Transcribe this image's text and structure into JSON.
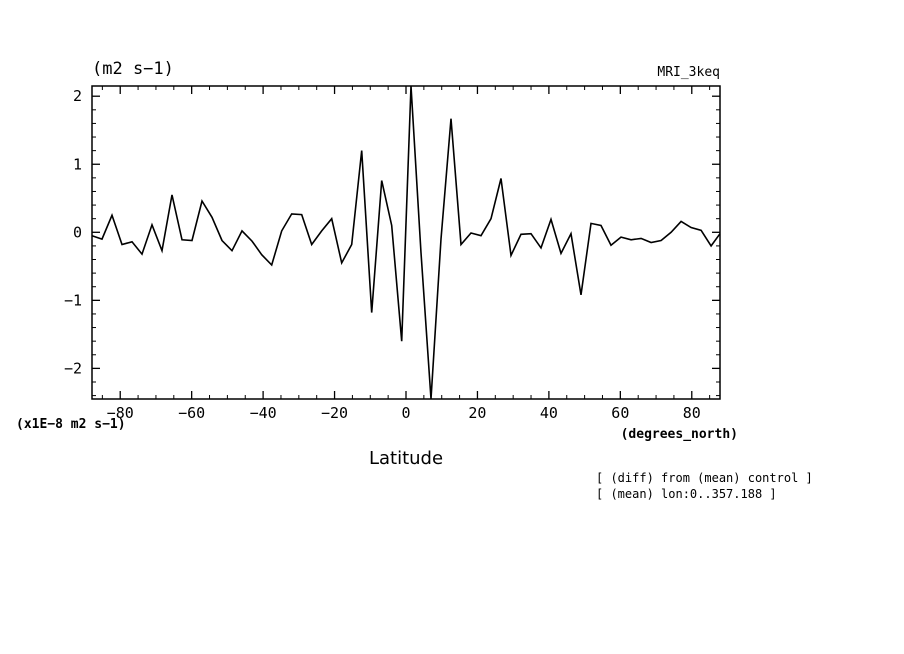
{
  "chart_data": {
    "type": "line",
    "title_left": "(m2 s−1)",
    "title_right": "MRI_3keq",
    "xlabel": "Latitude",
    "xunits": "(degrees_north)",
    "y_scale_note": "(x1E−8 m2 s−1)",
    "notes": [
      "[ (diff) from (mean) control ]",
      "[ (mean) lon:0..357.188 ]"
    ],
    "xlim": [
      -87.9,
      87.9
    ],
    "ylim": [
      -2.45,
      2.15
    ],
    "xticks": [
      -80,
      -60,
      -40,
      -20,
      0,
      20,
      40,
      60,
      80
    ],
    "xtick_labels": [
      "−80",
      "−60",
      "−40",
      "−20",
      "0",
      "20",
      "40",
      "60",
      "80"
    ],
    "yticks": [
      -2,
      -1,
      0,
      1,
      2
    ],
    "ytick_labels": [
      "−2",
      "−1",
      "0",
      "1",
      "2"
    ],
    "grid": false,
    "series": [
      {
        "x": [
          -87.9,
          -85.1,
          -82.3,
          -79.5,
          -76.7,
          -73.9,
          -71.1,
          -68.3,
          -65.5,
          -62.7,
          -59.9,
          -57.1,
          -54.3,
          -51.5,
          -48.7,
          -45.9,
          -43.1,
          -40.4,
          -37.6,
          -34.8,
          -32.0,
          -29.2,
          -26.4,
          -23.6,
          -20.8,
          -18.0,
          -15.2,
          -12.4,
          -9.6,
          -6.8,
          -4.0,
          -1.2,
          1.4,
          4.2,
          7.0,
          9.8,
          12.6,
          15.4,
          18.2,
          21.0,
          23.8,
          26.6,
          29.4,
          32.2,
          35.0,
          37.8,
          40.6,
          43.4,
          46.2,
          49.0,
          51.8,
          54.6,
          57.4,
          60.2,
          63.0,
          65.8,
          68.6,
          71.4,
          74.2,
          77.0,
          79.8,
          82.6,
          85.4,
          87.9
        ],
        "values": [
          -0.05,
          -0.1,
          0.25,
          -0.18,
          -0.14,
          -0.32,
          0.11,
          -0.27,
          0.55,
          -0.11,
          -0.12,
          0.46,
          0.22,
          -0.12,
          -0.27,
          0.02,
          -0.13,
          -0.33,
          -0.48,
          0.02,
          0.27,
          0.26,
          -0.18,
          0.02,
          0.2,
          -0.45,
          -0.18,
          1.2,
          -1.18,
          0.76,
          0.1,
          -1.6,
          2.15,
          -0.3,
          -2.45,
          -0.1,
          1.67,
          -0.18,
          -0.01,
          -0.05,
          0.2,
          0.79,
          -0.34,
          -0.03,
          -0.02,
          -0.23,
          0.19,
          -0.31,
          -0.02,
          -0.92,
          0.13,
          0.1,
          -0.19,
          -0.07,
          -0.11,
          -0.09,
          -0.15,
          -0.12,
          0.0,
          0.16,
          0.07,
          0.03,
          -0.2,
          -0.02
        ]
      }
    ]
  }
}
